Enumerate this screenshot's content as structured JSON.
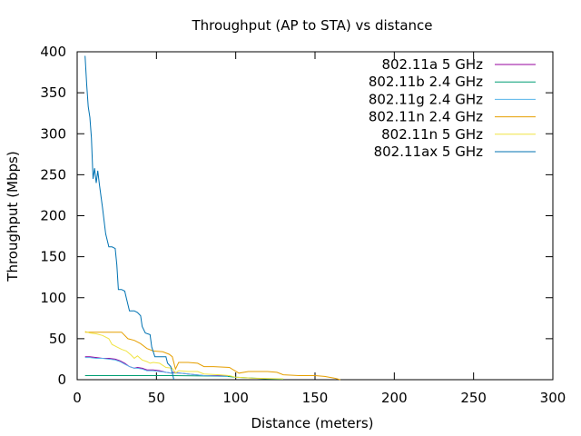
{
  "chart_data": {
    "type": "line",
    "title": "Throughput (AP to STA) vs distance",
    "xlabel": "Distance (meters)",
    "ylabel": "Throughput (Mbps)",
    "xlim": [
      0,
      300
    ],
    "ylim": [
      0,
      400
    ],
    "xticks": [
      0,
      50,
      100,
      150,
      200,
      250,
      300
    ],
    "yticks": [
      0,
      50,
      100,
      150,
      200,
      250,
      300,
      350,
      400
    ],
    "grid": false,
    "legend_position": "top-right",
    "series": [
      {
        "name": "802.11a 5 GHz",
        "color": "#94009e",
        "points": [
          [
            5,
            28
          ],
          [
            8,
            28
          ],
          [
            12,
            27
          ],
          [
            16,
            26
          ],
          [
            20,
            26
          ],
          [
            24,
            25
          ],
          [
            27,
            23
          ],
          [
            30,
            20
          ],
          [
            33,
            16
          ],
          [
            36,
            14
          ],
          [
            38,
            15
          ],
          [
            41,
            14
          ],
          [
            44,
            12
          ],
          [
            48,
            12
          ],
          [
            52,
            11
          ],
          [
            56,
            9
          ],
          [
            59,
            8
          ],
          [
            61,
            9
          ],
          [
            65,
            8
          ],
          [
            70,
            7
          ],
          [
            75,
            6
          ],
          [
            80,
            5
          ],
          [
            90,
            5
          ],
          [
            95,
            5
          ]
        ]
      },
      {
        "name": "802.11b 2.4 GHz",
        "color": "#009e73",
        "points": [
          [
            5,
            5
          ],
          [
            20,
            5
          ],
          [
            40,
            5
          ],
          [
            60,
            5
          ],
          [
            80,
            4.5
          ],
          [
            95,
            4
          ],
          [
            100,
            3
          ],
          [
            120,
            1
          ],
          [
            130,
            0.5
          ]
        ]
      },
      {
        "name": "802.11g 2.4 GHz",
        "color": "#56b4e9",
        "points": [
          [
            5,
            27
          ],
          [
            8,
            27
          ],
          [
            12,
            26
          ],
          [
            16,
            26
          ],
          [
            20,
            25
          ],
          [
            24,
            24
          ],
          [
            27,
            22
          ],
          [
            30,
            19
          ],
          [
            33,
            16
          ],
          [
            36,
            14
          ],
          [
            38,
            14
          ],
          [
            41,
            13
          ],
          [
            44,
            11
          ],
          [
            48,
            11
          ],
          [
            52,
            10
          ],
          [
            56,
            9
          ],
          [
            60,
            8
          ],
          [
            65,
            8
          ],
          [
            70,
            7
          ],
          [
            75,
            6
          ],
          [
            80,
            5
          ],
          [
            95,
            4
          ]
        ]
      },
      {
        "name": "802.11n 2.4 GHz",
        "color": "#e69f00",
        "points": [
          [
            5,
            58
          ],
          [
            10,
            58
          ],
          [
            20,
            58
          ],
          [
            28,
            58
          ],
          [
            32,
            50
          ],
          [
            36,
            48
          ],
          [
            40,
            44
          ],
          [
            44,
            38
          ],
          [
            48,
            35
          ],
          [
            54,
            34
          ],
          [
            58,
            31
          ],
          [
            60,
            28
          ],
          [
            62,
            13
          ],
          [
            64,
            21
          ],
          [
            70,
            21
          ],
          [
            76,
            20
          ],
          [
            80,
            16
          ],
          [
            86,
            16
          ],
          [
            96,
            15
          ],
          [
            102,
            8
          ],
          [
            108,
            10
          ],
          [
            120,
            10
          ],
          [
            126,
            9
          ],
          [
            130,
            6
          ],
          [
            140,
            5
          ],
          [
            150,
            5
          ],
          [
            156,
            4
          ],
          [
            162,
            2
          ],
          [
            166,
            0
          ]
        ]
      },
      {
        "name": "802.11n 5 GHz",
        "color": "#f0e442",
        "points": [
          [
            5,
            59
          ],
          [
            8,
            57
          ],
          [
            12,
            56
          ],
          [
            16,
            54
          ],
          [
            20,
            50
          ],
          [
            22,
            43
          ],
          [
            25,
            40
          ],
          [
            28,
            37
          ],
          [
            31,
            35
          ],
          [
            34,
            30
          ],
          [
            36,
            26
          ],
          [
            38,
            29
          ],
          [
            41,
            24
          ],
          [
            44,
            22
          ],
          [
            46,
            20
          ],
          [
            48,
            21
          ],
          [
            52,
            20
          ],
          [
            56,
            15
          ],
          [
            60,
            14
          ],
          [
            62,
            8
          ],
          [
            64,
            11
          ],
          [
            70,
            10
          ],
          [
            76,
            10
          ],
          [
            80,
            7
          ],
          [
            90,
            6
          ],
          [
            96,
            5
          ],
          [
            100,
            3
          ],
          [
            110,
            2
          ],
          [
            130,
            1
          ]
        ]
      },
      {
        "name": "802.11ax 5 GHz",
        "color": "#0072b2",
        "points": [
          [
            5,
            395
          ],
          [
            6,
            360
          ],
          [
            7,
            333
          ],
          [
            8,
            320
          ],
          [
            9,
            295
          ],
          [
            10,
            245
          ],
          [
            11,
            258
          ],
          [
            12,
            240
          ],
          [
            13,
            255
          ],
          [
            14,
            238
          ],
          [
            16,
            210
          ],
          [
            18,
            178
          ],
          [
            20,
            162
          ],
          [
            22,
            162
          ],
          [
            24,
            160
          ],
          [
            25,
            140
          ],
          [
            26,
            110
          ],
          [
            28,
            110
          ],
          [
            30,
            108
          ],
          [
            31,
            100
          ],
          [
            33,
            84
          ],
          [
            36,
            84
          ],
          [
            38,
            82
          ],
          [
            40,
            78
          ],
          [
            41,
            65
          ],
          [
            43,
            57
          ],
          [
            46,
            55
          ],
          [
            47,
            40
          ],
          [
            49,
            28
          ],
          [
            52,
            28
          ],
          [
            56,
            28
          ],
          [
            57,
            20
          ],
          [
            59,
            16
          ],
          [
            60,
            8
          ],
          [
            61,
            0
          ]
        ]
      }
    ]
  }
}
